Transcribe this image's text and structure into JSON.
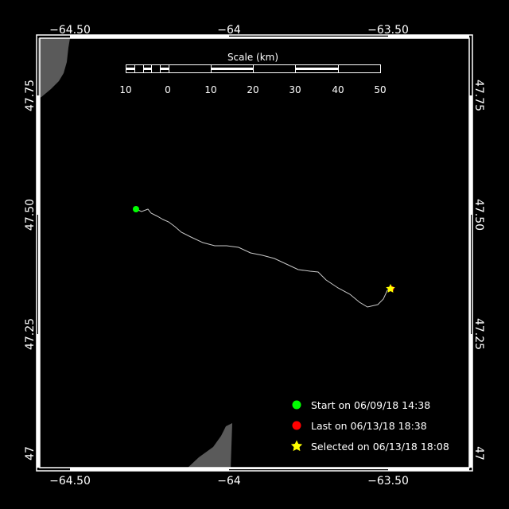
{
  "map": {
    "lon_ticks": [
      "−64.50",
      "−64",
      "−63.50"
    ],
    "lat_ticks": [
      "47.75",
      "47.50",
      "47.25",
      "47"
    ],
    "colors": {
      "background": "#000000",
      "land": "#5a5a5a",
      "track": "#c8c8c8",
      "start": "#00ff00",
      "last": "#ff0000",
      "selected": "#ffff00"
    }
  },
  "scale": {
    "title": "Scale (km)",
    "labels": [
      "10",
      "0",
      "10",
      "20",
      "30",
      "40",
      "50"
    ]
  },
  "legend": {
    "items": [
      {
        "icon": "green-dot-icon",
        "label": "Start on 06/09/18 14:38"
      },
      {
        "icon": "red-dot-icon",
        "label": "Last on 06/13/18 18:38"
      },
      {
        "icon": "yellow-star-icon",
        "label": "Selected on 06/13/18 18:08"
      }
    ]
  }
}
